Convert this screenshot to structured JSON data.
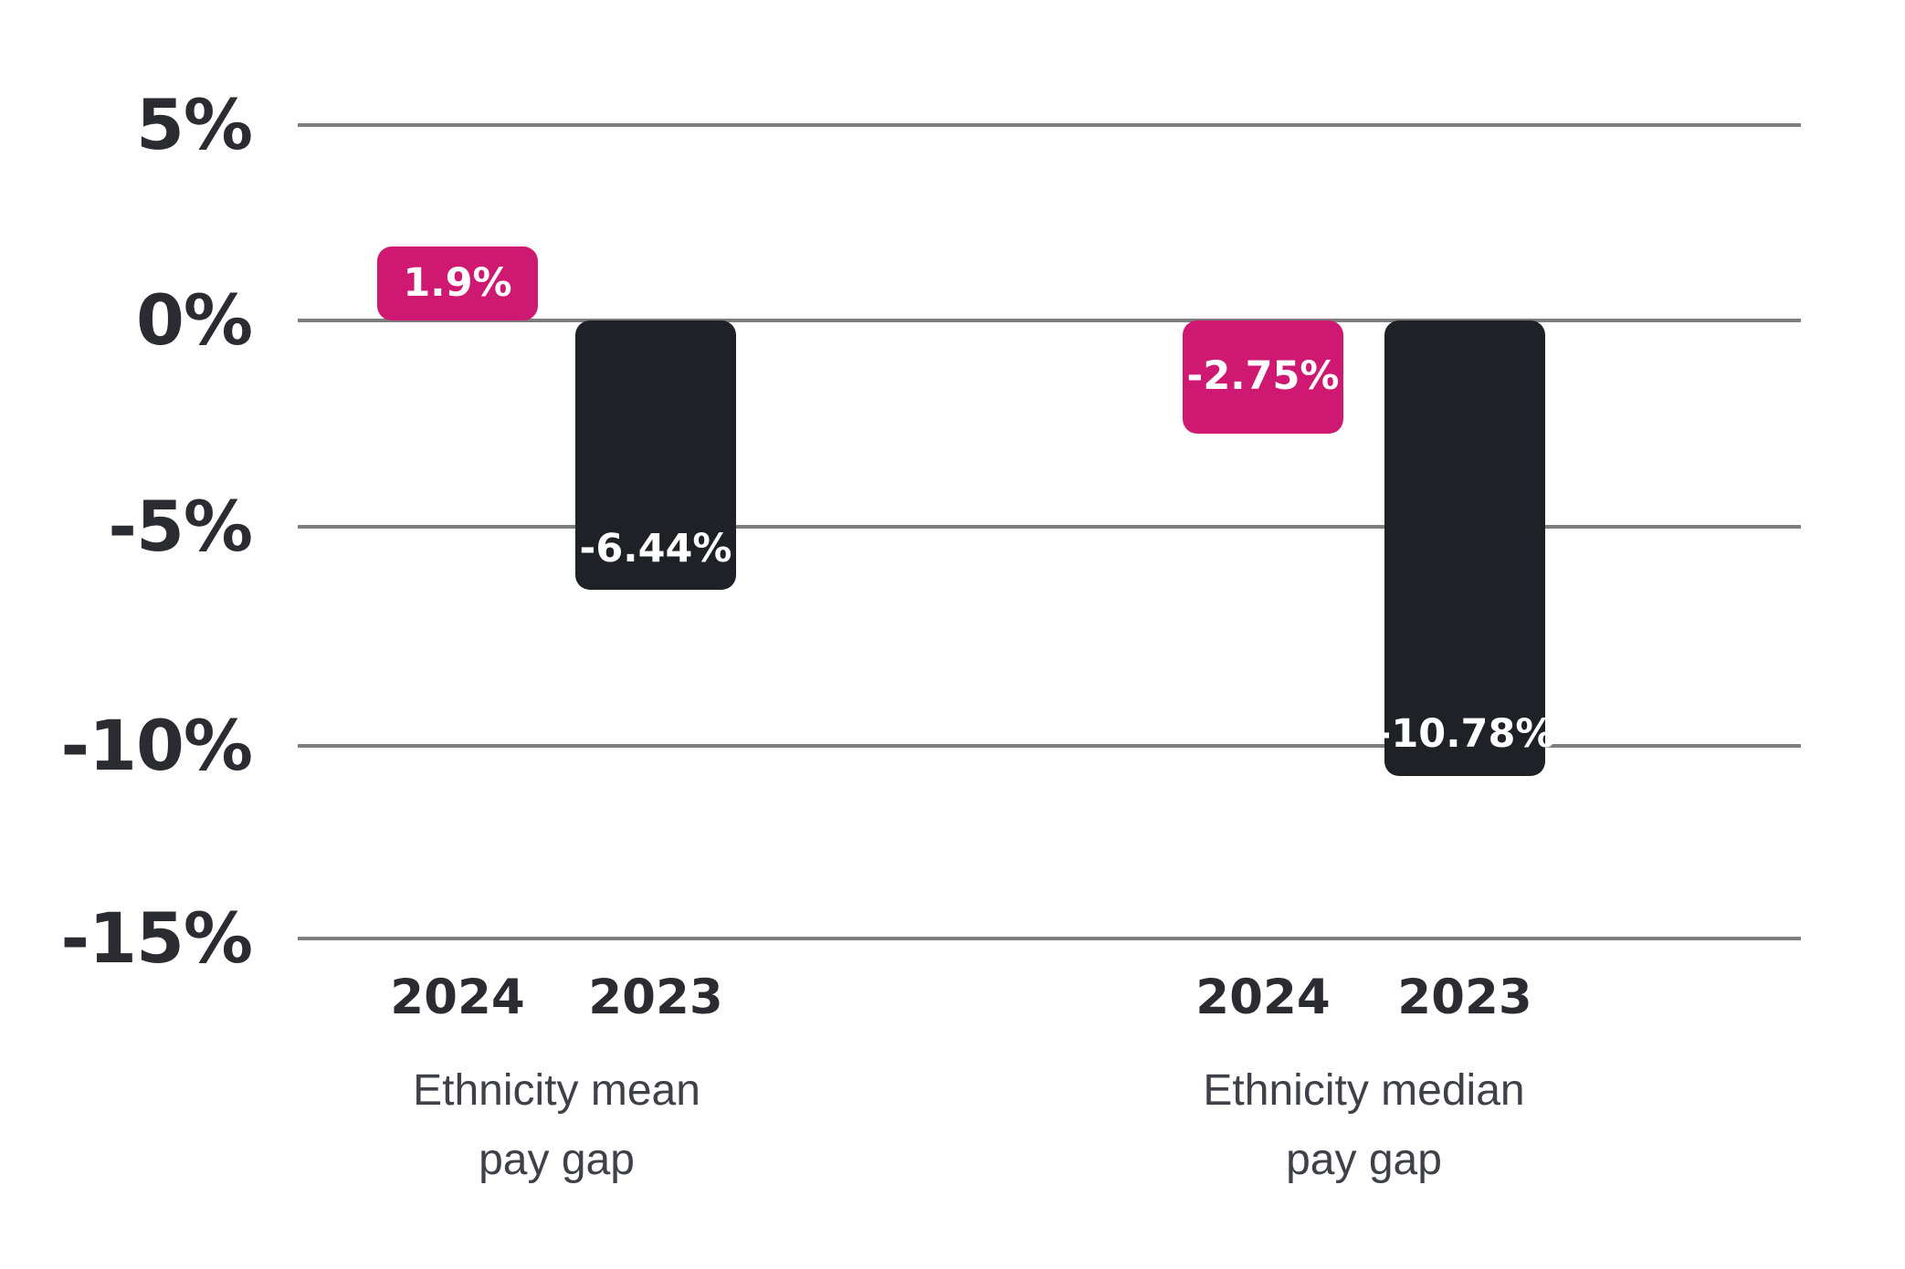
{
  "chart_data": {
    "type": "bar",
    "title": "",
    "xlabel": "",
    "ylabel": "",
    "ylim": [
      -15,
      5
    ],
    "grid": true,
    "legend": false,
    "yticks": [
      {
        "value": 5,
        "label": "5%"
      },
      {
        "value": 0,
        "label": "0%"
      },
      {
        "value": -5,
        "label": "-5%"
      },
      {
        "value": -10,
        "label": "-10%"
      },
      {
        "value": -15,
        "label": "-15%"
      }
    ],
    "groups": [
      {
        "label_lines": [
          "Ethnicity mean",
          "pay gap"
        ],
        "bars": [
          {
            "year": "2024",
            "value": 1.9,
            "label": "1.9%",
            "color_role": "accent"
          },
          {
            "year": "2023",
            "value": -6.44,
            "label": "-6.44%",
            "color_role": "dark"
          }
        ]
      },
      {
        "label_lines": [
          "Ethnicity median",
          "pay gap"
        ],
        "bars": [
          {
            "year": "2024",
            "value": -2.75,
            "label": "-2.75%",
            "color_role": "accent"
          },
          {
            "year": "2023",
            "value": -10.78,
            "label": "-10.78%",
            "color_role": "dark"
          }
        ]
      }
    ],
    "colors": {
      "accent": "#CE1872",
      "dark": "#1E2126",
      "gridline": "#7E7E7E",
      "axis_text": "#2A2C31",
      "group_label_text": "#3E4147",
      "bar_label_text": "#FFFFFF"
    }
  }
}
